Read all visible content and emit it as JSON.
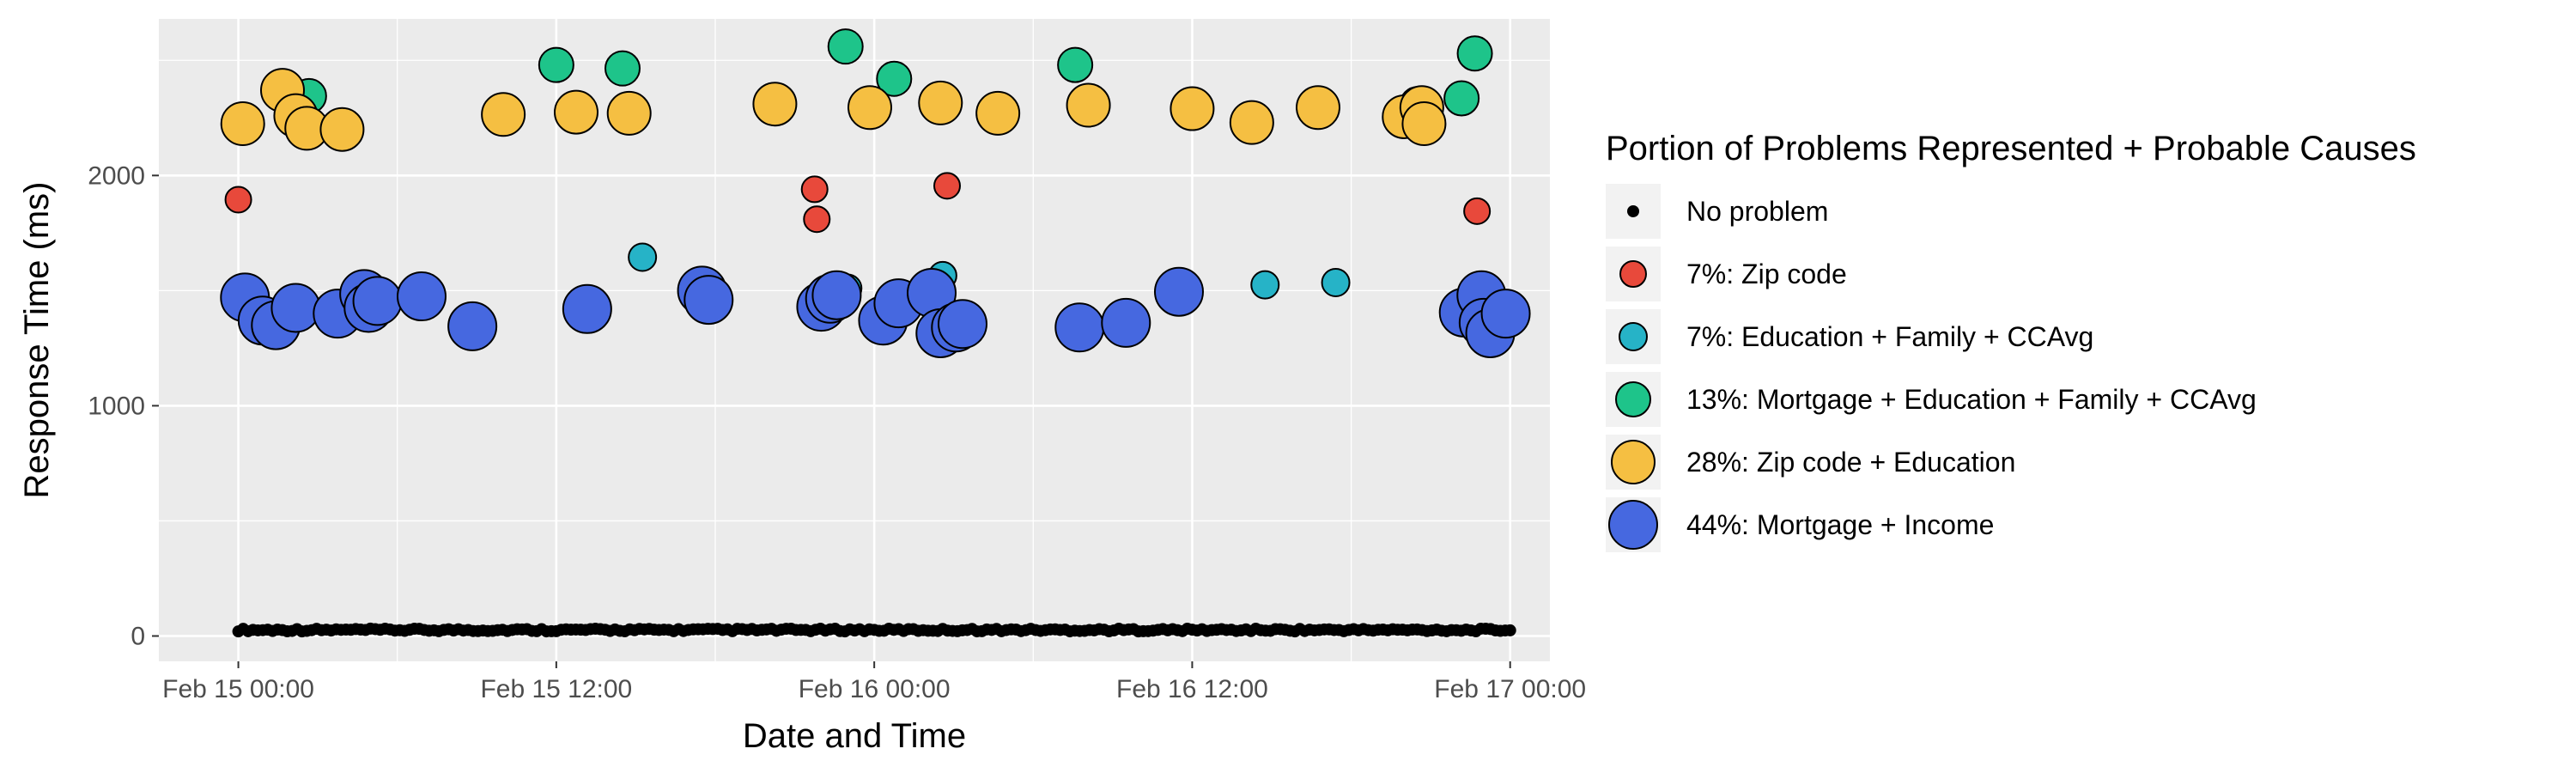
{
  "chart_data": {
    "type": "scatter",
    "xlabel": "Date and Time",
    "ylabel": "Response Time (ms)",
    "x_range": [
      "2021-02-14T21:00",
      "2021-02-17T01:30"
    ],
    "y_range": [
      -110,
      2680
    ],
    "x_ticks": [
      {
        "value": "2021-02-15T00:00",
        "label": "Feb 15 00:00"
      },
      {
        "value": "2021-02-15T12:00",
        "label": "Feb 15 12:00"
      },
      {
        "value": "2021-02-16T00:00",
        "label": "Feb 16 00:00"
      },
      {
        "value": "2021-02-16T12:00",
        "label": "Feb 16 12:00"
      },
      {
        "value": "2021-02-17T00:00",
        "label": "Feb 17 00:00"
      }
    ],
    "y_ticks": [
      0,
      1000,
      2000
    ],
    "grid": true,
    "legend": {
      "title": "Portion of Problems Represented + Probable Causes",
      "position": "right"
    },
    "series": [
      {
        "name": "No problem",
        "color": "#000000",
        "baseline": {
          "x_start": "2021-02-15T00:00",
          "x_end": "2021-02-17T00:00",
          "y_min": 20,
          "y_max": 32
        }
      },
      {
        "name": "7%: Zip code",
        "color": "#E8493B",
        "points": [
          {
            "x": "2021-02-15T00:00",
            "y": 1895
          },
          {
            "x": "2021-02-15T21:45",
            "y": 1940
          },
          {
            "x": "2021-02-15T21:50",
            "y": 1810
          },
          {
            "x": "2021-02-16T02:45",
            "y": 1955
          },
          {
            "x": "2021-02-16T22:45",
            "y": 1845
          }
        ]
      },
      {
        "name": "7%: Education + Family + CCAvg",
        "color": "#26B3C7",
        "points": [
          {
            "x": "2021-02-15T15:15",
            "y": 1645
          },
          {
            "x": "2021-02-15T23:00",
            "y": 1510
          },
          {
            "x": "2021-02-16T02:35",
            "y": 1565
          },
          {
            "x": "2021-02-16T14:45",
            "y": 1525
          },
          {
            "x": "2021-02-16T17:25",
            "y": 1535
          }
        ]
      },
      {
        "name": "13%: Mortgage + Education + Family + CCAvg",
        "color": "#1EC48A",
        "points": [
          {
            "x": "2021-02-15T02:40",
            "y": 2345
          },
          {
            "x": "2021-02-15T12:00",
            "y": 2480
          },
          {
            "x": "2021-02-15T14:30",
            "y": 2465
          },
          {
            "x": "2021-02-15T22:55",
            "y": 2560
          },
          {
            "x": "2021-02-16T00:45",
            "y": 2420
          },
          {
            "x": "2021-02-16T07:35",
            "y": 2480
          },
          {
            "x": "2021-02-16T20:30",
            "y": 2310
          },
          {
            "x": "2021-02-16T22:10",
            "y": 2335
          },
          {
            "x": "2021-02-16T22:40",
            "y": 2530
          }
        ]
      },
      {
        "name": "28%: Zip code + Education",
        "color": "#F5BF42",
        "points": [
          {
            "x": "2021-02-15T00:10",
            "y": 2225
          },
          {
            "x": "2021-02-15T01:40",
            "y": 2370
          },
          {
            "x": "2021-02-15T02:10",
            "y": 2260
          },
          {
            "x": "2021-02-15T02:35",
            "y": 2205
          },
          {
            "x": "2021-02-15T03:55",
            "y": 2200
          },
          {
            "x": "2021-02-15T10:00",
            "y": 2265
          },
          {
            "x": "2021-02-15T12:45",
            "y": 2275
          },
          {
            "x": "2021-02-15T14:45",
            "y": 2270
          },
          {
            "x": "2021-02-15T20:15",
            "y": 2310
          },
          {
            "x": "2021-02-15T23:50",
            "y": 2295
          },
          {
            "x": "2021-02-16T02:30",
            "y": 2315
          },
          {
            "x": "2021-02-16T04:40",
            "y": 2270
          },
          {
            "x": "2021-02-16T08:05",
            "y": 2305
          },
          {
            "x": "2021-02-16T12:00",
            "y": 2290
          },
          {
            "x": "2021-02-16T14:15",
            "y": 2230
          },
          {
            "x": "2021-02-16T16:45",
            "y": 2295
          },
          {
            "x": "2021-02-16T20:00",
            "y": 2255
          },
          {
            "x": "2021-02-16T20:40",
            "y": 2295
          },
          {
            "x": "2021-02-16T20:45",
            "y": 2225
          }
        ]
      },
      {
        "name": "44%: Mortgage + Income",
        "color": "#4668E0",
        "points": [
          {
            "x": "2021-02-15T00:15",
            "y": 1470
          },
          {
            "x": "2021-02-15T00:55",
            "y": 1370
          },
          {
            "x": "2021-02-15T01:25",
            "y": 1350
          },
          {
            "x": "2021-02-15T02:10",
            "y": 1425
          },
          {
            "x": "2021-02-15T03:45",
            "y": 1400
          },
          {
            "x": "2021-02-15T04:45",
            "y": 1485
          },
          {
            "x": "2021-02-15T04:55",
            "y": 1425
          },
          {
            "x": "2021-02-15T05:15",
            "y": 1455
          },
          {
            "x": "2021-02-15T06:55",
            "y": 1475
          },
          {
            "x": "2021-02-15T08:50",
            "y": 1345
          },
          {
            "x": "2021-02-15T13:10",
            "y": 1420
          },
          {
            "x": "2021-02-15T17:30",
            "y": 1500
          },
          {
            "x": "2021-02-15T17:45",
            "y": 1460
          },
          {
            "x": "2021-02-15T22:00",
            "y": 1430
          },
          {
            "x": "2021-02-15T22:20",
            "y": 1465
          },
          {
            "x": "2021-02-15T22:35",
            "y": 1480
          },
          {
            "x": "2021-02-16T00:20",
            "y": 1370
          },
          {
            "x": "2021-02-16T00:55",
            "y": 1445
          },
          {
            "x": "2021-02-16T02:10",
            "y": 1490
          },
          {
            "x": "2021-02-16T02:30",
            "y": 1315
          },
          {
            "x": "2021-02-16T03:05",
            "y": 1340
          },
          {
            "x": "2021-02-16T03:20",
            "y": 1355
          },
          {
            "x": "2021-02-16T07:45",
            "y": 1340
          },
          {
            "x": "2021-02-16T09:30",
            "y": 1360
          },
          {
            "x": "2021-02-16T11:30",
            "y": 1495
          },
          {
            "x": "2021-02-16T22:15",
            "y": 1405
          },
          {
            "x": "2021-02-16T22:55",
            "y": 1480
          },
          {
            "x": "2021-02-16T23:00",
            "y": 1360
          },
          {
            "x": "2021-02-16T23:15",
            "y": 1315
          },
          {
            "x": "2021-02-16T23:50",
            "y": 1400
          }
        ]
      }
    ]
  }
}
